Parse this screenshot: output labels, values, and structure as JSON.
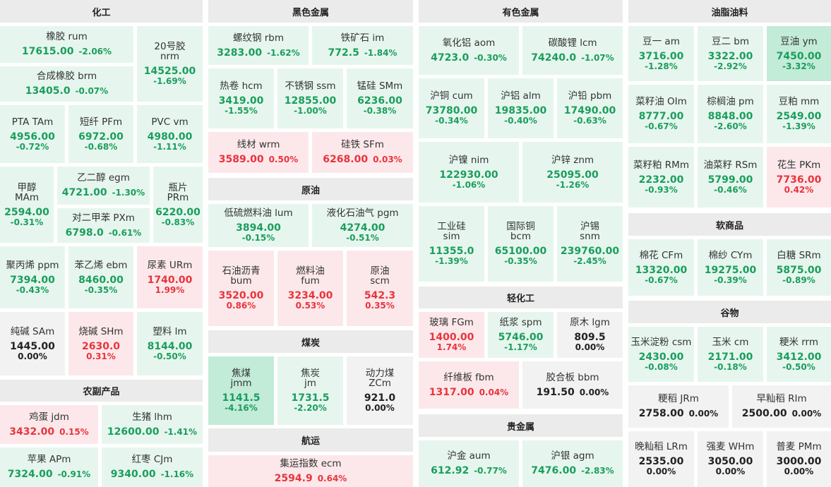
{
  "colors": {
    "up": "#e8343c",
    "down": "#1a9e5c",
    "flat": "#222222",
    "up_bg": "#fce8ea",
    "down_bg": "#e6f6ee",
    "strong_down_bg": "#c2ebd8",
    "flat_bg": "#f2f2f2",
    "header_bg": "#ebebeb"
  },
  "headers": {
    "chemical": "化工",
    "ferrous": "黑色金属",
    "nonferrous": "有色金属",
    "oils": "油脂油料",
    "crude": "原油",
    "agri_products": "农副产品",
    "softs": "软商品",
    "light_industry": "轻化工",
    "coal": "煤炭",
    "grains": "谷物",
    "precious": "贵金属",
    "shipping": "航运"
  },
  "cells": [
    {
      "id": "rum",
      "name": "橡胶  rum",
      "price": "17615.00",
      "change": "-2.06%",
      "trend": "down"
    },
    {
      "id": "nrm",
      "name": "20号胶\nnrm",
      "price": "14525.00",
      "change": "-1.69%",
      "trend": "down"
    },
    {
      "id": "brm",
      "name": "合成橡胶  brm",
      "price": "13405.0",
      "change": "-0.07%",
      "trend": "down"
    },
    {
      "id": "tam",
      "name": "PTA  TAm",
      "price": "4956.00",
      "change": "-0.72%",
      "trend": "down"
    },
    {
      "id": "pfm",
      "name": "短纤  PFm",
      "price": "6972.00",
      "change": "-0.68%",
      "trend": "down"
    },
    {
      "id": "vm",
      "name": "PVC  vm",
      "price": "4980.00",
      "change": "-1.11%",
      "trend": "down"
    },
    {
      "id": "mam",
      "name": "甲醇\nMAm",
      "price": "2594.00",
      "change": "-0.31%",
      "trend": "down"
    },
    {
      "id": "egm",
      "name": "乙二醇  egm",
      "price": "4721.00",
      "change": "-1.30%",
      "trend": "down"
    },
    {
      "id": "prm",
      "name": "瓶片\nPRm",
      "price": "6220.00",
      "change": "-0.83%",
      "trend": "down"
    },
    {
      "id": "pxm",
      "name": "对二甲苯  PXm",
      "price": "6798.0",
      "change": "-0.61%",
      "trend": "down"
    },
    {
      "id": "ppm",
      "name": "聚丙烯  ppm",
      "price": "7394.00",
      "change": "-0.43%",
      "trend": "down"
    },
    {
      "id": "ebm",
      "name": "苯乙烯  ebm",
      "price": "8460.00",
      "change": "-0.35%",
      "trend": "down"
    },
    {
      "id": "urm",
      "name": "尿素  URm",
      "price": "1740.00",
      "change": "1.99%",
      "trend": "up"
    },
    {
      "id": "sam",
      "name": "纯碱  SAm",
      "price": "1445.00",
      "change": "0.00%",
      "trend": "flat"
    },
    {
      "id": "shm",
      "name": "烧碱  SHm",
      "price": "2630.0",
      "change": "0.31%",
      "trend": "up"
    },
    {
      "id": "lm",
      "name": "塑料  lm",
      "price": "8144.00",
      "change": "-0.50%",
      "trend": "down"
    },
    {
      "id": "jdm",
      "name": "鸡蛋  jdm",
      "price": "3432.00",
      "change": "0.15%",
      "trend": "up"
    },
    {
      "id": "lhm",
      "name": "生猪  lhm",
      "price": "12600.00",
      "change": "-1.41%",
      "trend": "down"
    },
    {
      "id": "apm",
      "name": "苹果  APm",
      "price": "7324.00",
      "change": "-0.91%",
      "trend": "down"
    },
    {
      "id": "cjm",
      "name": "红枣  CJm",
      "price": "9340.00",
      "change": "-1.16%",
      "trend": "down"
    },
    {
      "id": "rbm",
      "name": "螺纹钢  rbm",
      "price": "3283.00",
      "change": "-1.62%",
      "trend": "down"
    },
    {
      "id": "im",
      "name": "铁矿石  im",
      "price": "772.5",
      "change": "-1.84%",
      "trend": "down"
    },
    {
      "id": "hcm",
      "name": "热卷  hcm",
      "price": "3419.00",
      "change": "-1.55%",
      "trend": "down"
    },
    {
      "id": "ssm",
      "name": "不锈钢  ssm",
      "price": "12855.00",
      "change": "-1.00%",
      "trend": "down"
    },
    {
      "id": "smm",
      "name": "锰硅  SMm",
      "price": "6236.00",
      "change": "-0.38%",
      "trend": "down"
    },
    {
      "id": "wrm",
      "name": "线材  wrm",
      "price": "3589.00",
      "change": "0.50%",
      "trend": "up"
    },
    {
      "id": "sfm",
      "name": "硅铁  SFm",
      "price": "6268.00",
      "change": "0.03%",
      "trend": "up"
    },
    {
      "id": "lum",
      "name": "低硫燃料油  lum",
      "price": "3894.00",
      "change": "-0.15%",
      "trend": "down"
    },
    {
      "id": "pgm",
      "name": "液化石油气  pgm",
      "price": "4274.00",
      "change": "-0.51%",
      "trend": "down"
    },
    {
      "id": "bum",
      "name": "石油沥青\nbum",
      "price": "3520.00",
      "change": "0.86%",
      "trend": "up"
    },
    {
      "id": "fum",
      "name": "燃料油\nfum",
      "price": "3234.00",
      "change": "0.53%",
      "trend": "up"
    },
    {
      "id": "scm",
      "name": "原油\nscm",
      "price": "542.3",
      "change": "0.35%",
      "trend": "up"
    },
    {
      "id": "jmm",
      "name": "焦煤\njmm",
      "price": "1141.5",
      "change": "-4.16%",
      "trend": "down",
      "strong": true
    },
    {
      "id": "jm",
      "name": "焦炭\njm",
      "price": "1731.5",
      "change": "-2.20%",
      "trend": "down"
    },
    {
      "id": "zcm",
      "name": "动力煤\nZCm",
      "price": "921.0",
      "change": "0.00%",
      "trend": "flat"
    },
    {
      "id": "ecm",
      "name": "集运指数  ecm",
      "price": "2594.9",
      "change": "0.64%",
      "trend": "up"
    },
    {
      "id": "aom",
      "name": "氧化铝  aom",
      "price": "4723.0",
      "change": "-0.30%",
      "trend": "down"
    },
    {
      "id": "lcm",
      "name": "碳酸锂  lcm",
      "price": "74240.0",
      "change": "-1.07%",
      "trend": "down"
    },
    {
      "id": "cum",
      "name": "沪铜  cum",
      "price": "73780.00",
      "change": "-0.34%",
      "trend": "down"
    },
    {
      "id": "alm",
      "name": "沪铝  alm",
      "price": "19835.00",
      "change": "-0.40%",
      "trend": "down"
    },
    {
      "id": "pbm",
      "name": "沪铅  pbm",
      "price": "17490.00",
      "change": "-0.63%",
      "trend": "down"
    },
    {
      "id": "nim",
      "name": "沪镍  nim",
      "price": "122930.00",
      "change": "-1.06%",
      "trend": "down"
    },
    {
      "id": "znm",
      "name": "沪锌  znm",
      "price": "25095.00",
      "change": "-1.26%",
      "trend": "down"
    },
    {
      "id": "sim",
      "name": "工业硅\nsim",
      "price": "11355.0",
      "change": "-1.39%",
      "trend": "down"
    },
    {
      "id": "bcm",
      "name": "国际铜\nbcm",
      "price": "65100.00",
      "change": "-0.35%",
      "trend": "down"
    },
    {
      "id": "snm",
      "name": "沪锡\nsnm",
      "price": "239760.00",
      "change": "-2.45%",
      "trend": "down"
    },
    {
      "id": "fgm",
      "name": "玻璃  FGm",
      "price": "1400.00",
      "change": "1.74%",
      "trend": "up"
    },
    {
      "id": "spm",
      "name": "纸浆  spm",
      "price": "5746.00",
      "change": "-1.17%",
      "trend": "down"
    },
    {
      "id": "lgm",
      "name": "原木  lgm",
      "price": "809.5",
      "change": "0.00%",
      "trend": "flat"
    },
    {
      "id": "fbm",
      "name": "纤维板  fbm",
      "price": "1317.00",
      "change": "0.04%",
      "trend": "up"
    },
    {
      "id": "bbm",
      "name": "胶合板  bbm",
      "price": "191.50",
      "change": "0.00%",
      "trend": "flat"
    },
    {
      "id": "aum",
      "name": "沪金  aum",
      "price": "612.92",
      "change": "-0.77%",
      "trend": "down"
    },
    {
      "id": "agm",
      "name": "沪银  agm",
      "price": "7476.00",
      "change": "-2.83%",
      "trend": "down"
    },
    {
      "id": "am",
      "name": "豆一  am",
      "price": "3716.00",
      "change": "-1.28%",
      "trend": "down"
    },
    {
      "id": "bm",
      "name": "豆二  bm",
      "price": "3322.00",
      "change": "-2.92%",
      "trend": "down"
    },
    {
      "id": "ym",
      "name": "豆油  ym",
      "price": "7450.00",
      "change": "-3.32%",
      "trend": "down",
      "strong": true
    },
    {
      "id": "oim",
      "name": "菜籽油  OIm",
      "price": "8777.00",
      "change": "-0.67%",
      "trend": "down"
    },
    {
      "id": "pm",
      "name": "棕榈油  pm",
      "price": "8848.00",
      "change": "-2.60%",
      "trend": "down"
    },
    {
      "id": "mm",
      "name": "豆粕  mm",
      "price": "2549.00",
      "change": "-1.39%",
      "trend": "down"
    },
    {
      "id": "rmm",
      "name": "菜籽粕  RMm",
      "price": "2232.00",
      "change": "-0.93%",
      "trend": "down"
    },
    {
      "id": "rsm",
      "name": "油菜籽  RSm",
      "price": "5799.00",
      "change": "-0.46%",
      "trend": "down"
    },
    {
      "id": "pkm",
      "name": "花生  PKm",
      "price": "7736.00",
      "change": "0.42%",
      "trend": "up"
    },
    {
      "id": "cfm",
      "name": "棉花  CFm",
      "price": "13320.00",
      "change": "-0.67%",
      "trend": "down"
    },
    {
      "id": "cym",
      "name": "棉纱  CYm",
      "price": "19275.00",
      "change": "-0.39%",
      "trend": "down"
    },
    {
      "id": "srm",
      "name": "白糖  SRm",
      "price": "5875.00",
      "change": "-0.89%",
      "trend": "down"
    },
    {
      "id": "csm",
      "name": "玉米淀粉  csm",
      "price": "2430.00",
      "change": "-0.08%",
      "trend": "down"
    },
    {
      "id": "cm",
      "name": "玉米  cm",
      "price": "2171.00",
      "change": "-0.18%",
      "trend": "down"
    },
    {
      "id": "rrm",
      "name": "粳米  rrm",
      "price": "3412.00",
      "change": "-0.50%",
      "trend": "down"
    },
    {
      "id": "jrm",
      "name": "粳稻  JRm",
      "price": "2758.00",
      "change": "0.00%",
      "trend": "flat"
    },
    {
      "id": "rim",
      "name": "早籼稻  RIm",
      "price": "2500.00",
      "change": "0.00%",
      "trend": "flat"
    },
    {
      "id": "lrm",
      "name": "晚籼稻  LRm",
      "price": "2535.00",
      "change": "0.00%",
      "trend": "flat"
    },
    {
      "id": "whm",
      "name": "强麦  WHm",
      "price": "3050.00",
      "change": "0.00%",
      "trend": "flat"
    },
    {
      "id": "pmm",
      "name": "普麦  PMm",
      "price": "3000.00",
      "change": "0.00%",
      "trend": "flat"
    }
  ]
}
